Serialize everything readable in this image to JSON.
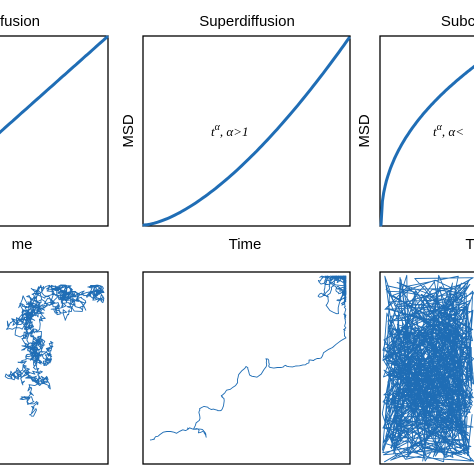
{
  "chart_data": [
    {
      "type": "line",
      "title": "fusion",
      "xlabel": "me",
      "ylabel": "",
      "annotation": "",
      "curve": "linear"
    },
    {
      "type": "line",
      "title": "Superdiffusion",
      "xlabel": "Time",
      "ylabel": "MSD",
      "annotation_base": "t",
      "annotation_exp": "α",
      "annotation_cond": ", α>1",
      "curve": "convex"
    },
    {
      "type": "line",
      "title": "Subc",
      "xlabel": "T",
      "ylabel": "MSD",
      "annotation_base": "t",
      "annotation_exp": "α",
      "annotation_cond": ", α<",
      "curve": "concave"
    },
    {
      "type": "scatter",
      "style": "random-walk",
      "variant": "normal"
    },
    {
      "type": "scatter",
      "style": "random-walk",
      "variant": "superdiffusive"
    },
    {
      "type": "scatter",
      "style": "random-walk",
      "variant": "subdiffusive"
    }
  ],
  "colors": {
    "line": "#1f6db5",
    "frame": "#000000"
  }
}
